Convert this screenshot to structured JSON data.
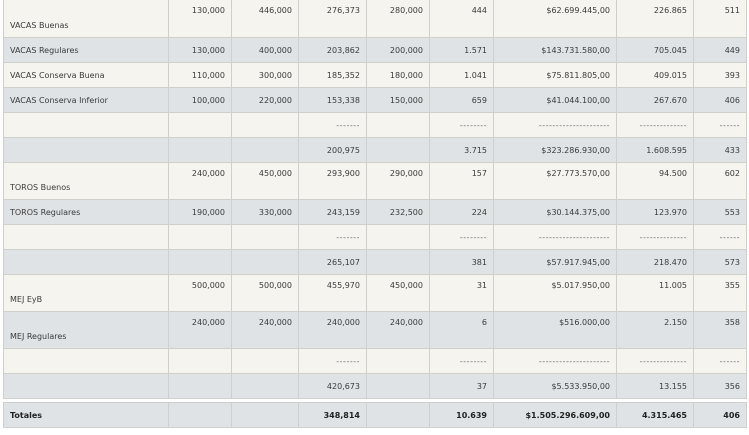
{
  "rows": [
    {
      "label": "VACAS Buenas",
      "cells": [
        "130,000",
        "446,000",
        "276,373",
        "280,000",
        "444",
        "$62.699.445,00",
        "226.865",
        "511"
      ]
    },
    {
      "label": "VACAS Regulares",
      "cells": [
        "130,000",
        "400,000",
        "203,862",
        "200,000",
        "1.571",
        "$143.731.580,00",
        "705.045",
        "449"
      ]
    },
    {
      "label": "VACAS Conserva Buena",
      "cells": [
        "110,000",
        "300,000",
        "185,352",
        "180,000",
        "1.041",
        "$75.811.805,00",
        "409.015",
        "393"
      ]
    },
    {
      "label": "VACAS Conserva Inferior",
      "cells": [
        "100,000",
        "220,000",
        "153,338",
        "150,000",
        "659",
        "$41.044.100,00",
        "267.670",
        "406"
      ]
    },
    {
      "label": "",
      "cells": [
        "",
        "",
        "-------",
        "",
        "--------",
        "---------------------",
        "--------------",
        "------"
      ]
    },
    {
      "label": "",
      "cells": [
        "",
        "",
        "200,975",
        "",
        "3.715",
        "$323.286.930,00",
        "1.608.595",
        "433"
      ]
    },
    {
      "label": "TOROS Buenos",
      "cells": [
        "240,000",
        "450,000",
        "293,900",
        "290,000",
        "157",
        "$27.773.570,00",
        "94.500",
        "602"
      ]
    },
    {
      "label": "TOROS Regulares",
      "cells": [
        "190,000",
        "330,000",
        "243,159",
        "232,500",
        "224",
        "$30.144.375,00",
        "123.970",
        "553"
      ]
    },
    {
      "label": "",
      "cells": [
        "",
        "",
        "-------",
        "",
        "--------",
        "---------------------",
        "--------------",
        "------"
      ]
    },
    {
      "label": "",
      "cells": [
        "",
        "",
        "265,107",
        "",
        "381",
        "$57.917.945,00",
        "218.470",
        "573"
      ]
    },
    {
      "label": "MEJ EyB",
      "cells": [
        "500,000",
        "500,000",
        "455,970",
        "450,000",
        "31",
        "$5.017.950,00",
        "11.005",
        "355"
      ]
    },
    {
      "label": "MEJ Regulares",
      "cells": [
        "240,000",
        "240,000",
        "240,000",
        "240,000",
        "6",
        "$516.000,00",
        "2.150",
        "358"
      ]
    },
    {
      "label": "",
      "cells": [
        "",
        "",
        "-------",
        "",
        "--------",
        "---------------------",
        "--------------",
        "------"
      ]
    },
    {
      "label": "",
      "cells": [
        "",
        "",
        "420,673",
        "",
        "37",
        "$5.533.950,00",
        "13.155",
        "356"
      ]
    },
    {
      "label": "Totales",
      "cells": [
        "",
        "",
        "348,814",
        "",
        "10.639",
        "$1.505.296.609,00",
        "4.315.465",
        "406"
      ]
    }
  ]
}
